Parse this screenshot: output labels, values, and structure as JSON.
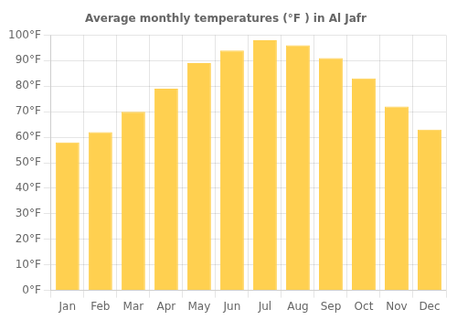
{
  "chart_data": {
    "type": "bar",
    "title": "Average monthly temperatures (°F ) in Al Jafr",
    "categories": [
      "Jan",
      "Feb",
      "Mar",
      "Apr",
      "May",
      "Jun",
      "Jul",
      "Aug",
      "Sep",
      "Oct",
      "Nov",
      "Dec"
    ],
    "values": [
      58,
      62,
      70,
      79,
      89,
      94,
      98,
      96,
      91,
      83,
      72,
      63
    ],
    "color": "#FFD050",
    "ylim": [
      0,
      100
    ],
    "yticks": [
      {
        "value": 0,
        "label": "0°F"
      },
      {
        "value": 10,
        "label": "10°F"
      },
      {
        "value": 20,
        "label": "20°F"
      },
      {
        "value": 30,
        "label": "30°F"
      },
      {
        "value": 40,
        "label": "40°F"
      },
      {
        "value": 50,
        "label": "50°F"
      },
      {
        "value": 60,
        "label": "60°F"
      },
      {
        "value": 70,
        "label": "70°F"
      },
      {
        "value": 80,
        "label": "80°F"
      },
      {
        "value": 90,
        "label": "90°F"
      },
      {
        "value": 100,
        "label": "100°F"
      }
    ],
    "grid": true
  }
}
